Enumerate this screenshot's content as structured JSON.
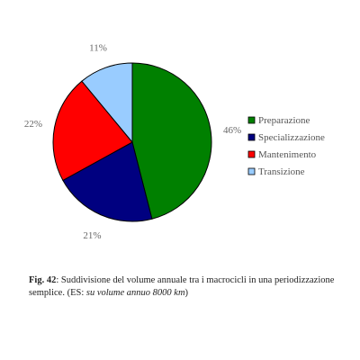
{
  "chart_data": {
    "type": "pie",
    "categories": [
      "Preparazione",
      "Specializzazione",
      "Mantenimento",
      "Transizione"
    ],
    "values": [
      46,
      21,
      22,
      11
    ],
    "data_labels": [
      "46%",
      "21%",
      "22%",
      "11%"
    ],
    "colors": [
      "#008000",
      "#000080",
      "#ff0000",
      "#99ccff"
    ],
    "start": "12 o'clock",
    "direction": "clockwise",
    "legend_position": "right"
  },
  "caption": {
    "fig_label": "Fig. 42",
    "text_main": ": Suddivisione del volume annuale tra i macrocicli in una periodizzazione semplice. (ES: ",
    "text_italic": "su volume annuo 8000 km",
    "text_end": ")"
  }
}
